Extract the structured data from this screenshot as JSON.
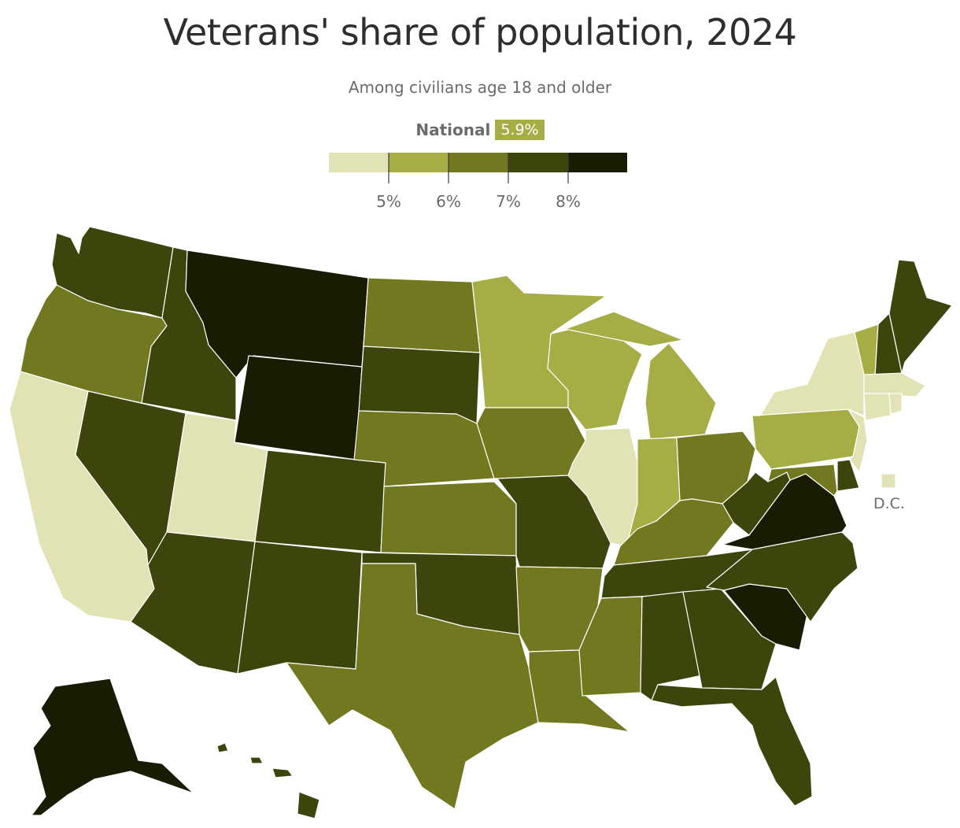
{
  "title": "Veterans' share of population, 2024",
  "subtitle": "Among civilians age 18 and older",
  "national": {
    "label": "National",
    "value": "5.9%",
    "color": "#a6ad45"
  },
  "legend": {
    "bins": [
      {
        "color": "#e1e3b4"
      },
      {
        "color": "#a6ad45"
      },
      {
        "color": "#71781f"
      },
      {
        "color": "#3d440c"
      },
      {
        "color": "#191b02"
      }
    ],
    "ticks": [
      "5%",
      "6%",
      "7%",
      "8%"
    ]
  },
  "dc_label": "D.C.",
  "states": {
    "WA": {
      "bin": 3
    },
    "OR": {
      "bin": 2
    },
    "CA": {
      "bin": 0
    },
    "ID": {
      "bin": 3
    },
    "NV": {
      "bin": 3
    },
    "UT": {
      "bin": 0
    },
    "AZ": {
      "bin": 3
    },
    "MT": {
      "bin": 4
    },
    "WY": {
      "bin": 4
    },
    "CO": {
      "bin": 3
    },
    "NM": {
      "bin": 3
    },
    "ND": {
      "bin": 2
    },
    "SD": {
      "bin": 3
    },
    "NE": {
      "bin": 2
    },
    "KS": {
      "bin": 2
    },
    "OK": {
      "bin": 3
    },
    "TX": {
      "bin": 2
    },
    "MN": {
      "bin": 1
    },
    "IA": {
      "bin": 2
    },
    "MO": {
      "bin": 3
    },
    "AR": {
      "bin": 2
    },
    "LA": {
      "bin": 2
    },
    "WI": {
      "bin": 1
    },
    "IL": {
      "bin": 0
    },
    "MI": {
      "bin": 1
    },
    "IN": {
      "bin": 1
    },
    "OH": {
      "bin": 2
    },
    "KY": {
      "bin": 2
    },
    "TN": {
      "bin": 3
    },
    "MS": {
      "bin": 2
    },
    "AL": {
      "bin": 3
    },
    "GA": {
      "bin": 3
    },
    "FL": {
      "bin": 3
    },
    "SC": {
      "bin": 4
    },
    "NC": {
      "bin": 3
    },
    "VA": {
      "bin": 4
    },
    "WV": {
      "bin": 3
    },
    "MD": {
      "bin": 2
    },
    "DE": {
      "bin": 3
    },
    "PA": {
      "bin": 1
    },
    "NJ": {
      "bin": 0
    },
    "NY": {
      "bin": 0
    },
    "CT": {
      "bin": 0
    },
    "RI": {
      "bin": 0
    },
    "MA": {
      "bin": 0
    },
    "VT": {
      "bin": 1
    },
    "NH": {
      "bin": 3
    },
    "ME": {
      "bin": 3
    },
    "AK": {
      "bin": 4
    },
    "HI": {
      "bin": 3
    },
    "DC": {
      "bin": 0
    }
  }
}
